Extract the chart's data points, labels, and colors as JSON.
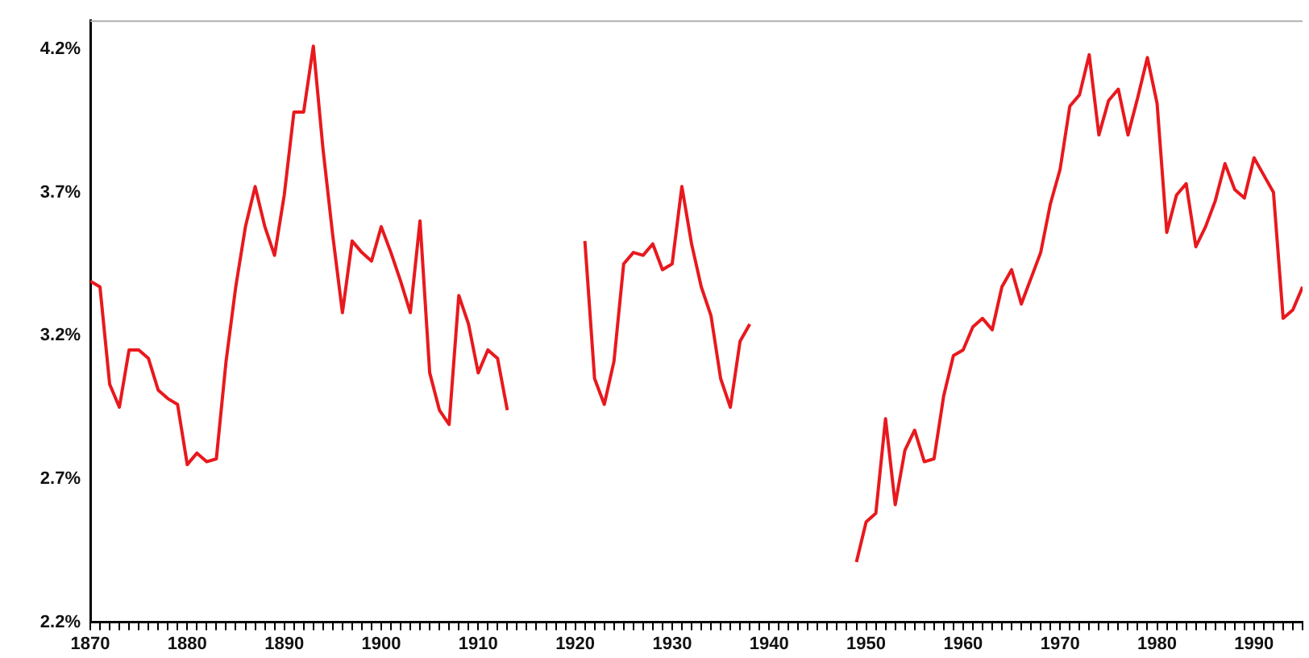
{
  "chart_data": {
    "type": "line",
    "x": [
      1870,
      1871,
      1872,
      1873,
      1874,
      1875,
      1876,
      1877,
      1878,
      1879,
      1880,
      1881,
      1882,
      1883,
      1884,
      1885,
      1886,
      1887,
      1888,
      1889,
      1890,
      1891,
      1892,
      1893,
      1894,
      1895,
      1896,
      1897,
      1898,
      1899,
      1900,
      1901,
      1902,
      1903,
      1904,
      1905,
      1906,
      1907,
      1908,
      1909,
      1910,
      1911,
      1912,
      1913,
      1914,
      1915,
      1916,
      1917,
      1918,
      1919,
      1920,
      1921,
      1922,
      1923,
      1924,
      1925,
      1926,
      1927,
      1928,
      1929,
      1930,
      1931,
      1932,
      1933,
      1934,
      1935,
      1936,
      1937,
      1938,
      1939,
      1940,
      1941,
      1942,
      1943,
      1944,
      1945,
      1946,
      1947,
      1948,
      1949,
      1950,
      1951,
      1952,
      1953,
      1954,
      1955,
      1956,
      1957,
      1958,
      1959,
      1960,
      1961,
      1962,
      1963,
      1964,
      1965,
      1966,
      1967,
      1968,
      1969,
      1970,
      1971,
      1972,
      1973,
      1974,
      1975,
      1976,
      1977,
      1978,
      1979,
      1980,
      1981,
      1982,
      1983,
      1984,
      1985,
      1986,
      1987,
      1988,
      1989,
      1990,
      1991,
      1992,
      1993,
      1994,
      1995
    ],
    "series": [
      {
        "color": "#e8191e",
        "values": [
          3.39,
          3.37,
          3.03,
          2.95,
          3.15,
          3.15,
          3.12,
          3.01,
          2.98,
          2.96,
          2.75,
          2.79,
          2.76,
          2.77,
          3.11,
          3.37,
          3.58,
          3.72,
          3.58,
          3.48,
          3.69,
          3.98,
          3.98,
          4.21,
          3.85,
          3.55,
          3.28,
          3.53,
          3.49,
          3.46,
          3.58,
          3.49,
          3.39,
          3.28,
          3.6,
          3.07,
          2.94,
          2.89,
          3.34,
          3.24,
          3.07,
          3.15,
          3.12,
          2.94,
          null,
          null,
          null,
          null,
          null,
          null,
          null,
          3.53,
          3.05,
          2.96,
          3.11,
          3.45,
          3.49,
          3.48,
          3.52,
          3.43,
          3.45,
          3.72,
          3.52,
          3.37,
          3.27,
          3.05,
          2.95,
          3.18,
          3.24,
          null,
          null,
          null,
          null,
          null,
          null,
          null,
          null,
          null,
          null,
          2.41,
          2.55,
          2.58,
          2.91,
          2.61,
          2.8,
          2.87,
          2.76,
          2.77,
          2.99,
          3.13,
          3.15,
          3.23,
          3.26,
          3.22,
          3.37,
          3.43,
          3.31,
          3.4,
          3.49,
          3.66,
          3.78,
          4.0,
          4.04,
          4.18,
          3.9,
          4.02,
          4.06,
          3.9,
          4.03,
          4.17,
          4.01,
          3.56,
          3.69,
          3.73,
          3.51,
          3.58,
          3.67,
          3.8,
          3.71,
          3.68,
          3.82,
          3.76,
          3.7,
          3.26,
          3.29,
          3.37
        ]
      }
    ],
    "xlim": [
      1870,
      1995
    ],
    "xticks": [
      1870,
      {
        "value": 1871,
        "label": null
      },
      {
        "value": 1872,
        "label": null
      },
      {
        "value": 1873,
        "label": null
      },
      {
        "value": 1874,
        "label": null
      },
      {
        "value": 1875,
        "label": null
      },
      {
        "value": 1876,
        "label": null
      },
      {
        "value": 1877,
        "label": null
      },
      {
        "value": 1878,
        "label": null
      },
      {
        "value": 1879,
        "label": null
      },
      1880,
      {
        "value": 1881,
        "label": null
      },
      {
        "value": 1882,
        "label": null
      },
      {
        "value": 1883,
        "label": null
      },
      {
        "value": 1884,
        "label": null
      },
      {
        "value": 1885,
        "label": null
      },
      {
        "value": 1886,
        "label": null
      },
      {
        "value": 1887,
        "label": null
      },
      {
        "value": 1888,
        "label": null
      },
      {
        "value": 1889,
        "label": null
      },
      1890,
      {
        "value": 1891,
        "label": null
      },
      {
        "value": 1892,
        "label": null
      },
      {
        "value": 1893,
        "label": null
      },
      {
        "value": 1894,
        "label": null
      },
      {
        "value": 1895,
        "label": null
      },
      {
        "value": 1896,
        "label": null
      },
      {
        "value": 1897,
        "label": null
      },
      {
        "value": 1898,
        "label": null
      },
      {
        "value": 1899,
        "label": null
      },
      1900,
      {
        "value": 1901,
        "label": null
      },
      {
        "value": 1902,
        "label": null
      },
      {
        "value": 1903,
        "label": null
      },
      {
        "value": 1904,
        "label": null
      },
      {
        "value": 1905,
        "label": null
      },
      {
        "value": 1906,
        "label": null
      },
      {
        "value": 1907,
        "label": null
      },
      {
        "value": 1908,
        "label": null
      },
      {
        "value": 1909,
        "label": null
      },
      1910,
      {
        "value": 1911,
        "label": null
      },
      {
        "value": 1912,
        "label": null
      },
      {
        "value": 1913,
        "label": null
      },
      {
        "value": 1914,
        "label": null
      },
      {
        "value": 1915,
        "label": null
      },
      {
        "value": 1916,
        "label": null
      },
      {
        "value": 1917,
        "label": null
      },
      {
        "value": 1918,
        "label": null
      },
      {
        "value": 1919,
        "label": null
      },
      1920,
      {
        "value": 1921,
        "label": null
      },
      {
        "value": 1922,
        "label": null
      },
      {
        "value": 1923,
        "label": null
      },
      {
        "value": 1924,
        "label": null
      },
      {
        "value": 1925,
        "label": null
      },
      {
        "value": 1926,
        "label": null
      },
      {
        "value": 1927,
        "label": null
      },
      {
        "value": 1928,
        "label": null
      },
      {
        "value": 1929,
        "label": null
      },
      1930,
      {
        "value": 1931,
        "label": null
      },
      {
        "value": 1932,
        "label": null
      },
      {
        "value": 1933,
        "label": null
      },
      {
        "value": 1934,
        "label": null
      },
      {
        "value": 1935,
        "label": null
      },
      {
        "value": 1936,
        "label": null
      },
      {
        "value": 1937,
        "label": null
      },
      {
        "value": 1938,
        "label": null
      },
      {
        "value": 1939,
        "label": null
      },
      1940,
      {
        "value": 1941,
        "label": null
      },
      {
        "value": 1942,
        "label": null
      },
      {
        "value": 1943,
        "label": null
      },
      {
        "value": 1944,
        "label": null
      },
      {
        "value": 1945,
        "label": null
      },
      {
        "value": 1946,
        "label": null
      },
      {
        "value": 1947,
        "label": null
      },
      {
        "value": 1948,
        "label": null
      },
      {
        "value": 1949,
        "label": null
      },
      1950,
      {
        "value": 1951,
        "label": null
      },
      {
        "value": 1952,
        "label": null
      },
      {
        "value": 1953,
        "label": null
      },
      {
        "value": 1954,
        "label": null
      },
      {
        "value": 1955,
        "label": null
      },
      {
        "value": 1956,
        "label": null
      },
      {
        "value": 1957,
        "label": null
      },
      {
        "value": 1958,
        "label": null
      },
      {
        "value": 1959,
        "label": null
      },
      1960,
      {
        "value": 1961,
        "label": null
      },
      {
        "value": 1962,
        "label": null
      },
      {
        "value": 1963,
        "label": null
      },
      {
        "value": 1964,
        "label": null
      },
      {
        "value": 1965,
        "label": null
      },
      {
        "value": 1966,
        "label": null
      },
      {
        "value": 1967,
        "label": null
      },
      {
        "value": 1968,
        "label": null
      },
      {
        "value": 1969,
        "label": null
      },
      1970,
      {
        "value": 1971,
        "label": null
      },
      {
        "value": 1972,
        "label": null
      },
      {
        "value": 1973,
        "label": null
      },
      {
        "value": 1974,
        "label": null
      },
      {
        "value": 1975,
        "label": null
      },
      {
        "value": 1976,
        "label": null
      },
      {
        "value": 1977,
        "label": null
      },
      {
        "value": 1978,
        "label": null
      },
      {
        "value": 1979,
        "label": null
      },
      1980,
      {
        "value": 1981,
        "label": null
      },
      {
        "value": 1982,
        "label": null
      },
      {
        "value": 1983,
        "label": null
      },
      {
        "value": 1984,
        "label": null
      },
      {
        "value": 1985,
        "label": null
      },
      {
        "value": 1986,
        "label": null
      },
      {
        "value": 1987,
        "label": null
      },
      {
        "value": 1988,
        "label": null
      },
      {
        "value": 1989,
        "label": null
      },
      1990,
      {
        "value": 1991,
        "label": null
      },
      {
        "value": 1992,
        "label": null
      },
      {
        "value": 1993,
        "label": null
      },
      {
        "value": 1994,
        "label": null
      },
      {
        "value": 1995,
        "label": null
      }
    ],
    "ylim": [
      2.2,
      4.3
    ],
    "yticks": [
      {
        "value": 2.2,
        "label": "2.2%"
      },
      {
        "value": 2.7,
        "label": "2.7%"
      },
      {
        "value": 3.2,
        "label": "3.2%"
      },
      {
        "value": 3.7,
        "label": "3.7%"
      },
      {
        "value": 4.2,
        "label": "4.2%"
      }
    ],
    "grid": false,
    "legend": false,
    "marker": "none",
    "line_style": "solid"
  }
}
